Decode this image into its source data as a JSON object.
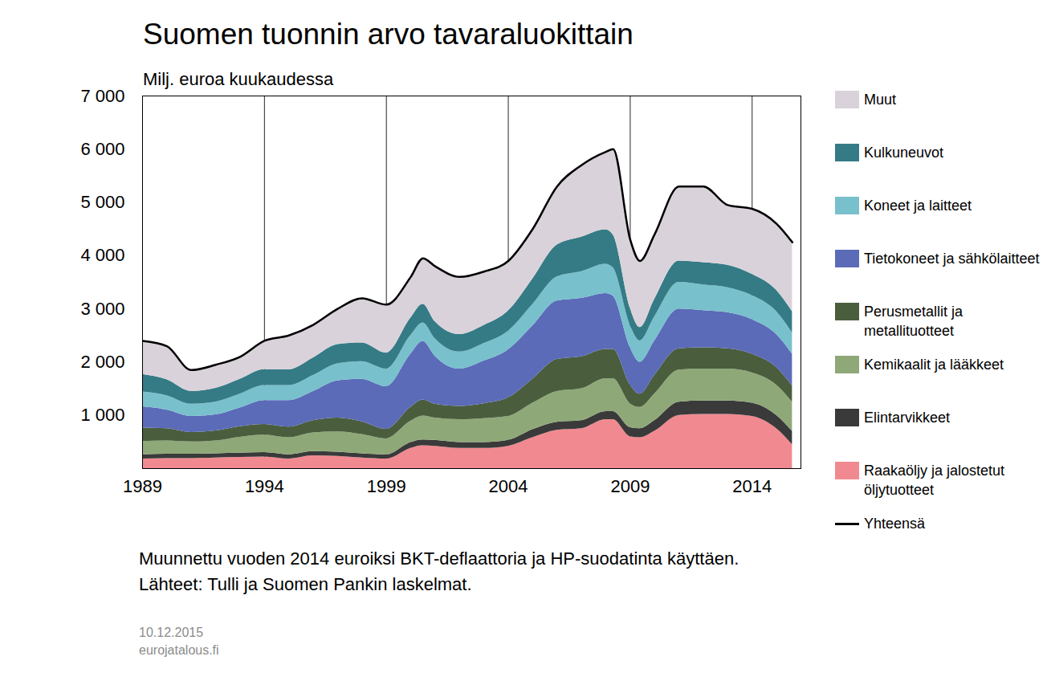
{
  "chart_data": {
    "type": "area",
    "title": "Suomen tuonnin arvo tavaraluokittain",
    "subtitle": "Milj. euroa kuukaudessa",
    "caption": [
      "Muunnettu vuoden 2014 euroiksi BKT-deflaattoria ja HP-suodatinta käyttäen.",
      "Lähteet: Tulli ja Suomen Pankin laskelmat."
    ],
    "footer": [
      "10.12.2015",
      "eurojatalous.fi"
    ],
    "stacked": true,
    "grid": true,
    "legend": "right",
    "x": [
      1989,
      1990,
      1991,
      1992,
      1993,
      1994,
      1995,
      1996,
      1997,
      1998,
      1999,
      2000,
      2000.5,
      2001,
      2002,
      2003,
      2004,
      2005,
      2006,
      2007,
      2008,
      2008.3,
      2009,
      2009.4,
      2010,
      2011,
      2012,
      2013,
      2014,
      2015,
      2015.65
    ],
    "xlim": [
      1989,
      2016
    ],
    "xticks": [
      1989,
      1994,
      1999,
      2004,
      2009,
      2014
    ],
    "ylim": [
      0,
      7000
    ],
    "yticks": [
      {
        "value": 1000,
        "label": "1 000"
      },
      {
        "value": 2000,
        "label": "2 000"
      },
      {
        "value": 3000,
        "label": "3 000"
      },
      {
        "value": 4000,
        "label": "4 000"
      },
      {
        "value": 5000,
        "label": "5 000"
      },
      {
        "value": 6000,
        "label": "6 000"
      },
      {
        "value": 7000,
        "label": "7 000"
      }
    ],
    "series": [
      {
        "name": "Raakaöljy ja jalostetut öljytuotteet",
        "color": "#f08a90",
        "values": [
          180,
          190,
          190,
          200,
          210,
          220,
          180,
          240,
          230,
          200,
          180,
          380,
          430,
          420,
          380,
          380,
          420,
          580,
          720,
          750,
          920,
          920,
          600,
          580,
          700,
          1000,
          1020,
          1020,
          980,
          750,
          450
        ]
      },
      {
        "name": "Elintarvikkeet",
        "color": "#3a3a3a",
        "values": [
          80,
          80,
          80,
          80,
          80,
          80,
          80,
          80,
          80,
          80,
          80,
          110,
          110,
          110,
          110,
          110,
          110,
          150,
          150,
          150,
          150,
          150,
          170,
          170,
          200,
          250,
          250,
          250,
          250,
          250,
          250
        ]
      },
      {
        "name": "Kemikaalit ja lääkkeet",
        "color": "#8fa878",
        "values": [
          250,
          250,
          230,
          240,
          300,
          330,
          320,
          350,
          380,
          360,
          300,
          400,
          450,
          420,
          430,
          450,
          450,
          500,
          580,
          600,
          620,
          620,
          450,
          400,
          500,
          600,
          600,
          600,
          570,
          570,
          550
        ]
      },
      {
        "name": "Perusmetallit ja metallituotteet",
        "color": "#4a5e3e",
        "values": [
          250,
          230,
          180,
          190,
          200,
          200,
          200,
          230,
          260,
          240,
          180,
          260,
          300,
          260,
          250,
          280,
          350,
          450,
          600,
          600,
          550,
          550,
          350,
          250,
          350,
          400,
          400,
          380,
          350,
          330,
          300
        ]
      },
      {
        "name": "Tietokoneet ja sähkölaitteet",
        "color": "#5b6bb8",
        "values": [
          400,
          350,
          300,
          300,
          350,
          450,
          500,
          550,
          700,
          800,
          800,
          1000,
          1100,
          900,
          700,
          800,
          900,
          1000,
          1100,
          1100,
          1050,
          1000,
          700,
          600,
          650,
          750,
          700,
          680,
          650,
          620,
          600
        ]
      },
      {
        "name": "Koneet ja laitteet",
        "color": "#78c0cc",
        "values": [
          280,
          270,
          230,
          240,
          260,
          280,
          280,
          300,
          320,
          330,
          330,
          350,
          350,
          330,
          320,
          330,
          350,
          400,
          450,
          500,
          550,
          530,
          420,
          400,
          450,
          500,
          480,
          470,
          450,
          430,
          400
        ]
      },
      {
        "name": "Kulkuneuvot",
        "color": "#357b86",
        "values": [
          330,
          300,
          240,
          260,
          280,
          300,
          300,
          330,
          360,
          350,
          300,
          330,
          350,
          320,
          330,
          340,
          380,
          480,
          600,
          650,
          650,
          620,
          320,
          250,
          330,
          400,
          420,
          420,
          400,
          400,
          400
        ]
      },
      {
        "name": "Muut",
        "color": "#d9d2da",
        "values": [
          630,
          630,
          400,
          440,
          420,
          540,
          640,
          620,
          670,
          840,
          910,
          770,
          860,
          1040,
          1080,
          1010,
          940,
          940,
          1100,
          1350,
          1460,
          1610,
          1290,
          1250,
          1220,
          1400,
          1430,
          1130,
          1230,
          1250,
          1300
        ]
      },
      {
        "name": "Yhteensä",
        "color": "#000000",
        "type": "line",
        "values": [
          2400,
          2300,
          1850,
          1950,
          2100,
          2400,
          2500,
          2700,
          3000,
          3200,
          3080,
          3600,
          3950,
          3800,
          3600,
          3700,
          3900,
          4500,
          5300,
          5700,
          5950,
          6000,
          4300,
          3900,
          4400,
          5300,
          5300,
          4950,
          4880,
          4600,
          4250
        ]
      }
    ]
  }
}
